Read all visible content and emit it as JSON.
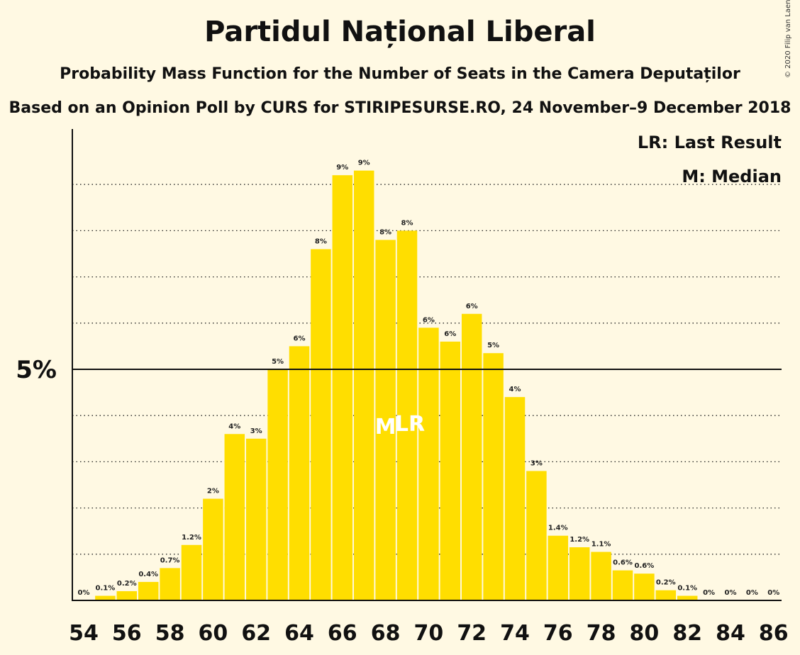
{
  "chart_data": {
    "type": "bar",
    "title": "Partidul Național Liberal",
    "subtitle": "Probability Mass Function for the Number of Seats in the Camera Deputaților",
    "subtitle2": "Based on an Opinion Poll by CURS for STIRIPESURSE.RO, 24 November–9 December 2018",
    "copyright": "© 2020 Filip van Laenen",
    "legend": [
      "LR: Last Result",
      "M: Median"
    ],
    "legend_position": "top-right",
    "y_tick_label": "5%",
    "y_tick_value": 5,
    "ylim": [
      0,
      10.2
    ],
    "grid": "dotted, every 1%",
    "x": [
      54,
      55,
      56,
      57,
      58,
      59,
      60,
      61,
      62,
      63,
      64,
      65,
      66,
      67,
      68,
      69,
      70,
      71,
      72,
      73,
      74,
      75,
      76,
      77,
      78,
      79,
      80,
      81,
      82,
      83,
      84,
      85,
      86
    ],
    "values": [
      0,
      0.1,
      0.2,
      0.4,
      0.7,
      1.2,
      2.2,
      3.6,
      3.5,
      5.0,
      5.5,
      7.6,
      9.2,
      9.3,
      7.8,
      8.0,
      5.9,
      5.6,
      6.2,
      5.35,
      4.4,
      2.8,
      1.4,
      1.15,
      1.05,
      0.65,
      0.58,
      0.22,
      0.1,
      0,
      0,
      0,
      0
    ],
    "data_labels": [
      "0%",
      "0.1%",
      "0.2%",
      "0.4%",
      "0.7%",
      "1.2%",
      "2%",
      "4%",
      "3%",
      "5%",
      "6%",
      "8%",
      "9%",
      "9%",
      "8%",
      "8%",
      "6%",
      "6%",
      "6%",
      "5%",
      "4%",
      "3%",
      "1.4%",
      "1.2%",
      "1.1%",
      "0.6%",
      "0.6%",
      "0.2%",
      "0.1%",
      "0%",
      "0%",
      "0%",
      "0%"
    ],
    "x_tick_labels": [
      "54",
      "56",
      "58",
      "60",
      "62",
      "64",
      "66",
      "68",
      "70",
      "72",
      "74",
      "76",
      "78",
      "80",
      "82",
      "84",
      "86"
    ],
    "median": 68,
    "median_label": "M",
    "last_result": 69,
    "last_result_label": "LR",
    "bar_color": "#FFDE00",
    "background_color": "#FFF9E3"
  }
}
